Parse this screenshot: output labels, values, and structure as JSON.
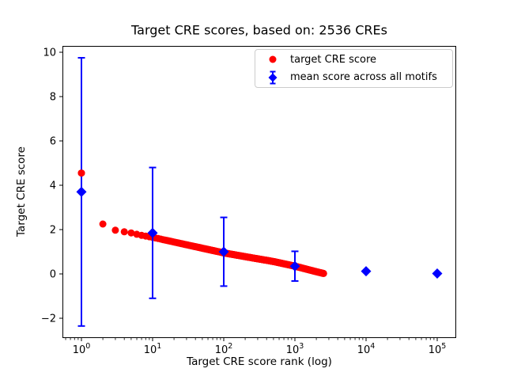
{
  "figure": {
    "background": "#ffffff",
    "spine_color": "#000000"
  },
  "chart_data": {
    "type": "scatter",
    "title": "Target CRE scores, based on: 2536 CREs",
    "xlabel": "Target CRE score rank (log)",
    "ylabel": "Target CRE score",
    "x_scale": "log",
    "xlim": [
      0.54,
      186000
    ],
    "ylim": [
      -2.89,
      10.29
    ],
    "x_tick_base": "10",
    "x_tick_exponents": [
      0,
      1,
      2,
      3,
      4,
      5
    ],
    "x_tick_values": [
      1,
      10,
      100,
      1000,
      10000,
      100000
    ],
    "y_ticks": [
      -2,
      0,
      2,
      4,
      6,
      8,
      10
    ],
    "y_tick_labels": [
      "−2",
      "0",
      "2",
      "4",
      "6",
      "8",
      "10"
    ],
    "grid": false,
    "legend_position": "upper right inside",
    "series": [
      {
        "name": "target CRE score",
        "color": "#ff0000",
        "marker": "circle",
        "marker_radius_px": 4.5,
        "n_points": 2536,
        "anchor_points": {
          "rank": [
            1,
            2,
            3,
            4,
            5,
            7,
            10,
            20,
            50,
            100,
            200,
            500,
            1000,
            2000,
            2536
          ],
          "score": [
            4.55,
            2.25,
            1.97,
            1.9,
            1.85,
            1.74,
            1.65,
            1.44,
            1.16,
            0.95,
            0.78,
            0.56,
            0.35,
            0.1,
            0.02
          ]
        }
      },
      {
        "name": "mean score across all motifs",
        "color": "#0000ff",
        "marker": "diamond",
        "error_bars": true,
        "points": [
          {
            "rank": 1,
            "mean": 3.7,
            "std": 6.05
          },
          {
            "rank": 10,
            "mean": 1.85,
            "std": 2.95
          },
          {
            "rank": 100,
            "mean": 1.0,
            "std": 1.55
          },
          {
            "rank": 1000,
            "mean": 0.35,
            "std": 0.67
          },
          {
            "rank": 10000,
            "mean": 0.12,
            "std": 0
          },
          {
            "rank": 100000,
            "mean": 0.02,
            "std": 0
          }
        ]
      }
    ]
  }
}
